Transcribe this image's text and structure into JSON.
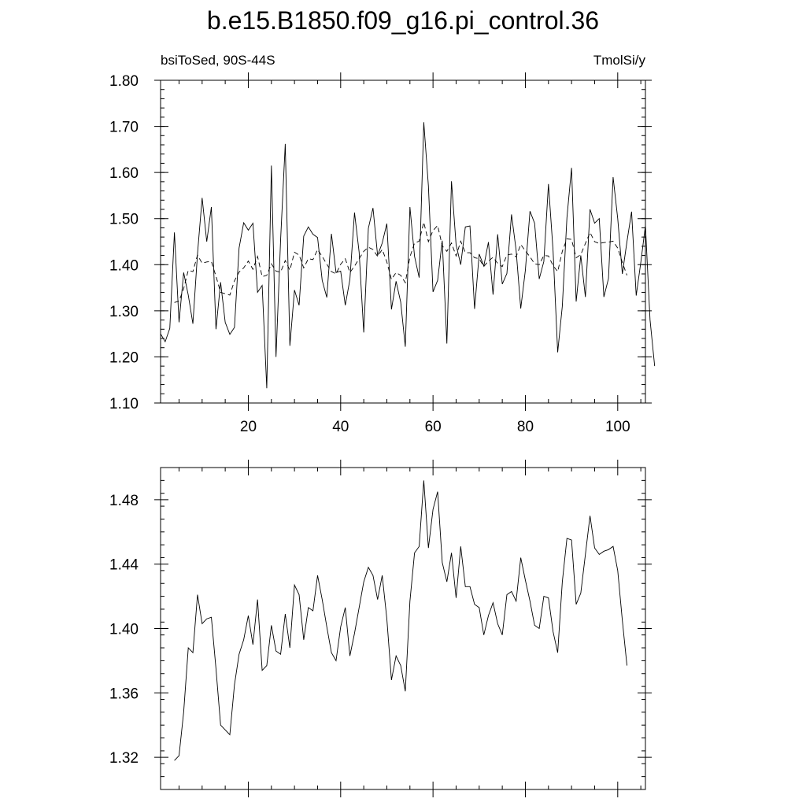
{
  "title": "b.e15.B1850.f09_g16.pi_control.36",
  "chart_data": [
    {
      "type": "line",
      "left_label": "bsiToSed, 90S-44S",
      "right_label": "TmolSi/y",
      "xlim": [
        1,
        106
      ],
      "ylim": [
        1.1,
        1.8
      ],
      "x_ticks": [
        20,
        40,
        60,
        80,
        100
      ],
      "y_ticks": [
        1.1,
        1.2,
        1.3,
        1.4,
        1.5,
        1.6,
        1.7,
        1.8
      ],
      "y_tick_labels": [
        "1.10",
        "1.20",
        "1.30",
        "1.40",
        "1.50",
        "1.60",
        "1.70",
        "1.80"
      ],
      "series": [
        {
          "style": "solid",
          "x_start": 1,
          "values": [
            1.25,
            1.233,
            1.262,
            1.47,
            1.275,
            1.383,
            1.334,
            1.272,
            1.424,
            1.545,
            1.45,
            1.525,
            1.26,
            1.362,
            1.275,
            1.249,
            1.264,
            1.436,
            1.491,
            1.475,
            1.49,
            1.34,
            1.355,
            1.132,
            1.615,
            1.2,
            1.455,
            1.662,
            1.224,
            1.345,
            1.312,
            1.462,
            1.482,
            1.466,
            1.459,
            1.366,
            1.329,
            1.467,
            1.383,
            1.386,
            1.312,
            1.368,
            1.513,
            1.427,
            1.253,
            1.479,
            1.523,
            1.42,
            1.447,
            1.489,
            1.303,
            1.364,
            1.319,
            1.222,
            1.525,
            1.418,
            1.372,
            1.709,
            1.571,
            1.341,
            1.366,
            1.452,
            1.229,
            1.581,
            1.443,
            1.4,
            1.482,
            1.484,
            1.304,
            1.423,
            1.397,
            1.449,
            1.335,
            1.466,
            1.358,
            1.381,
            1.509,
            1.431,
            1.305,
            1.388,
            1.516,
            1.49,
            1.369,
            1.407,
            1.575,
            1.43,
            1.21,
            1.31,
            1.502,
            1.61,
            1.32,
            1.42,
            1.33,
            1.52,
            1.49,
            1.5,
            1.33,
            1.37,
            1.59,
            1.5,
            1.38,
            1.45,
            1.515,
            1.333,
            1.405,
            1.485,
            1.28,
            1.18
          ]
        },
        {
          "style": "dashed",
          "x_start": 4,
          "values": [
            1.318,
            1.321,
            1.348,
            1.388,
            1.385,
            1.421,
            1.403,
            1.406,
            1.407,
            1.375,
            1.34,
            1.337,
            1.334,
            1.365,
            1.384,
            1.393,
            1.408,
            1.39,
            1.418,
            1.374,
            1.377,
            1.402,
            1.386,
            1.384,
            1.409,
            1.388,
            1.427,
            1.421,
            1.393,
            1.413,
            1.411,
            1.433,
            1.418,
            1.401,
            1.385,
            1.38,
            1.401,
            1.413,
            1.383,
            1.397,
            1.413,
            1.429,
            1.438,
            1.433,
            1.418,
            1.433,
            1.406,
            1.368,
            1.383,
            1.377,
            1.361,
            1.417,
            1.447,
            1.451,
            1.492,
            1.45,
            1.474,
            1.485,
            1.441,
            1.429,
            1.447,
            1.419,
            1.451,
            1.426,
            1.426,
            1.415,
            1.413,
            1.396,
            1.408,
            1.416,
            1.403,
            1.396,
            1.421,
            1.423,
            1.417,
            1.444,
            1.43,
            1.417,
            1.402,
            1.4,
            1.42,
            1.419,
            1.398,
            1.385,
            1.429,
            1.456,
            1.455,
            1.415,
            1.422,
            1.446,
            1.47,
            1.45,
            1.446,
            1.448,
            1.449,
            1.451,
            1.436,
            1.405,
            1.377
          ]
        }
      ]
    },
    {
      "type": "line",
      "xlim": [
        1,
        106
      ],
      "ylim": [
        1.3,
        1.5
      ],
      "y_ticks": [
        1.32,
        1.36,
        1.4,
        1.44,
        1.48
      ],
      "y_tick_labels": [
        "1.32",
        "1.36",
        "1.40",
        "1.44",
        "1.48"
      ],
      "series": [
        {
          "style": "solid",
          "x_start": 4,
          "values": [
            1.318,
            1.321,
            1.348,
            1.388,
            1.385,
            1.421,
            1.403,
            1.406,
            1.407,
            1.375,
            1.34,
            1.337,
            1.334,
            1.365,
            1.384,
            1.393,
            1.408,
            1.39,
            1.418,
            1.374,
            1.377,
            1.402,
            1.386,
            1.384,
            1.409,
            1.388,
            1.427,
            1.421,
            1.393,
            1.413,
            1.411,
            1.433,
            1.418,
            1.401,
            1.385,
            1.38,
            1.401,
            1.413,
            1.383,
            1.397,
            1.413,
            1.429,
            1.438,
            1.433,
            1.418,
            1.433,
            1.406,
            1.368,
            1.383,
            1.377,
            1.361,
            1.417,
            1.447,
            1.451,
            1.492,
            1.45,
            1.474,
            1.485,
            1.441,
            1.429,
            1.447,
            1.419,
            1.451,
            1.426,
            1.426,
            1.415,
            1.413,
            1.396,
            1.408,
            1.416,
            1.403,
            1.396,
            1.421,
            1.423,
            1.417,
            1.444,
            1.43,
            1.417,
            1.402,
            1.4,
            1.42,
            1.419,
            1.398,
            1.385,
            1.429,
            1.456,
            1.455,
            1.415,
            1.422,
            1.446,
            1.47,
            1.45,
            1.446,
            1.448,
            1.449,
            1.451,
            1.436,
            1.405,
            1.377
          ]
        }
      ]
    }
  ]
}
